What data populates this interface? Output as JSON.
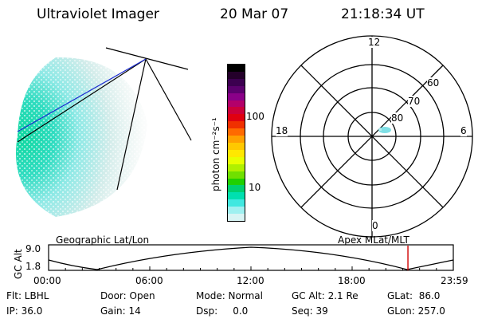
{
  "header": {
    "instrument": "Ultraviolet Imager",
    "date": "20 Mar 07",
    "time": "21:18:34 UT"
  },
  "colorbar": {
    "unit_label": "photon cm⁻²s⁻¹",
    "ticks": [
      "100",
      "10"
    ],
    "colors": [
      "#000000",
      "#24002a",
      "#3c0050",
      "#5c006e",
      "#8a0088",
      "#b3006a",
      "#cc003a",
      "#e00010",
      "#f03000",
      "#ff6a00",
      "#ffa000",
      "#ffc800",
      "#ffe800",
      "#e8ff00",
      "#b0f000",
      "#70e000",
      "#20d000",
      "#00d070",
      "#00e0b0",
      "#40e8e0",
      "#9ff0f0",
      "#d8f4f4"
    ]
  },
  "polar": {
    "ring_labels": [
      "60",
      "70",
      "80"
    ],
    "mlt_labels": {
      "top": "12",
      "left": "18",
      "right": "6",
      "bottom": "0"
    }
  },
  "plot_labels": {
    "left": "Geographic Lat/Lon",
    "right": "Apex MLat/MLT"
  },
  "timeline": {
    "ylabel": "GC Alt",
    "yticks": [
      "9.0",
      "1.8"
    ],
    "xticks": [
      "00:00",
      "06:00",
      "12:00",
      "18:00",
      "23:59"
    ],
    "current_time_fraction": 0.8879,
    "marker_color": "#d00000"
  },
  "info": {
    "flt": "Flt: LBHL",
    "ip": "IP: 36.0",
    "door": "Door: Open",
    "gain": "Gain: 14",
    "mode": "Mode: Normal",
    "dsp": "Dsp:     0.0",
    "gcalt": "GC Alt: 2.1 Re",
    "seq": "Seq: 39",
    "glat": "GLat:  86.0",
    "glon": "GLon: 257.0"
  }
}
